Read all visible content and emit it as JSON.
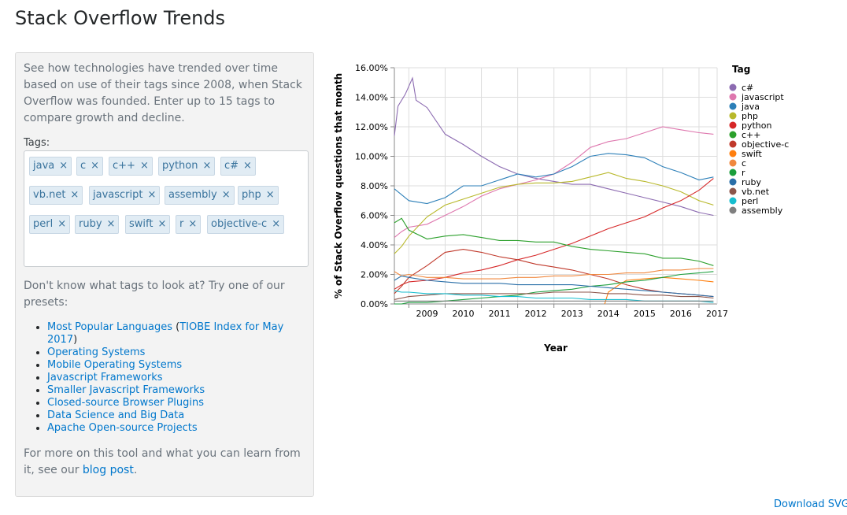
{
  "page": {
    "title": "Stack Overflow Trends"
  },
  "sidebar": {
    "intro": "See how technologies have trended over time based on use of their tags since 2008, when Stack Overflow was founded. Enter up to 15 tags to compare growth and decline.",
    "tags_label": "Tags:",
    "tags": [
      "java",
      "c",
      "c++",
      "python",
      "c#",
      "vb.net",
      "javascript",
      "assembly",
      "php",
      "perl",
      "ruby",
      "swift",
      "r",
      "objective-c"
    ],
    "remove_icon": "×",
    "presets_question": "Don't know what tags to look at? Try one of our presets:",
    "presets": {
      "item1_text": "Most Popular Languages",
      "item1_open": " (",
      "item1_link2": "TIOBE Index for May 2017",
      "item1_close": ")",
      "others": [
        "Operating Systems",
        "Mobile Operating Systems",
        "Javascript Frameworks",
        "Smaller Javascript Frameworks",
        "Closed-source Browser Plugins",
        "Data Science and Big Data",
        "Apache Open-source Projects"
      ]
    },
    "more_text": "For more on this tool and what you can learn from it, see our",
    "more_link": "blog post",
    "more_end": "."
  },
  "download_label": "Download SVG",
  "chart_data": {
    "type": "line",
    "xlabel": "Year",
    "ylabel": "% of Stack Overflow questions that month",
    "ylim": [
      0,
      16
    ],
    "yticks": [
      "0.00%",
      "2.00%",
      "4.00%",
      "6.00%",
      "8.00%",
      "10.00%",
      "12.00%",
      "14.00%",
      "16.00%"
    ],
    "xlim": [
      2008.6,
      2017.5
    ],
    "xticks": [
      "2009",
      "2010",
      "2011",
      "2012",
      "2013",
      "2014",
      "2015",
      "2016",
      "2017"
    ],
    "grid": true,
    "legend_title": "Tag",
    "legend_position": "right",
    "series": [
      {
        "name": "c#",
        "color": "#8c6bb1",
        "x": [
          2008.6,
          2008.7,
          2008.9,
          2009.1,
          2009.2,
          2009.5,
          2010.0,
          2010.5,
          2011.0,
          2011.5,
          2012.0,
          2012.5,
          2013.0,
          2013.5,
          2014.0,
          2014.5,
          2015.0,
          2015.5,
          2016.0,
          2016.5,
          2017.0,
          2017.4
        ],
        "y": [
          11.4,
          13.4,
          14.2,
          15.3,
          13.8,
          13.3,
          11.5,
          10.8,
          10.0,
          9.3,
          8.8,
          8.5,
          8.3,
          8.1,
          8.1,
          7.8,
          7.5,
          7.2,
          6.9,
          6.6,
          6.2,
          6.0
        ]
      },
      {
        "name": "javascript",
        "color": "#de77ae",
        "x": [
          2008.6,
          2008.8,
          2009.0,
          2009.5,
          2010.0,
          2010.5,
          2011.0,
          2011.5,
          2012.0,
          2012.5,
          2013.0,
          2013.5,
          2014.0,
          2014.5,
          2015.0,
          2015.5,
          2016.0,
          2016.5,
          2017.0,
          2017.4
        ],
        "y": [
          4.5,
          4.9,
          5.2,
          5.4,
          6.0,
          6.6,
          7.3,
          7.8,
          8.1,
          8.4,
          8.8,
          9.6,
          10.6,
          11.0,
          11.2,
          11.6,
          12.0,
          11.8,
          11.6,
          11.5
        ]
      },
      {
        "name": "java",
        "color": "#2c7fb8",
        "x": [
          2008.6,
          2008.8,
          2009.0,
          2009.5,
          2010.0,
          2010.5,
          2011.0,
          2011.5,
          2012.0,
          2012.5,
          2013.0,
          2013.5,
          2014.0,
          2014.5,
          2015.0,
          2015.5,
          2016.0,
          2016.5,
          2017.0,
          2017.4
        ],
        "y": [
          7.8,
          7.4,
          7.0,
          6.8,
          7.2,
          8.0,
          8.0,
          8.4,
          8.8,
          8.6,
          8.8,
          9.3,
          10.0,
          10.2,
          10.1,
          9.9,
          9.3,
          8.9,
          8.4,
          8.6
        ]
      },
      {
        "name": "php",
        "color": "#b8b82a",
        "x": [
          2008.6,
          2008.8,
          2009.0,
          2009.5,
          2010.0,
          2010.5,
          2011.0,
          2011.5,
          2012.0,
          2012.5,
          2013.0,
          2013.5,
          2014.0,
          2014.5,
          2015.0,
          2015.5,
          2016.0,
          2016.5,
          2017.0,
          2017.4
        ],
        "y": [
          3.4,
          3.9,
          4.6,
          5.9,
          6.7,
          7.1,
          7.5,
          7.9,
          8.1,
          8.2,
          8.2,
          8.3,
          8.6,
          8.9,
          8.5,
          8.3,
          8.0,
          7.6,
          7.0,
          6.7
        ]
      },
      {
        "name": "python",
        "color": "#d62728",
        "x": [
          2008.6,
          2008.8,
          2009.0,
          2009.5,
          2010.0,
          2010.5,
          2011.0,
          2011.5,
          2012.0,
          2012.5,
          2013.0,
          2013.5,
          2014.0,
          2014.5,
          2015.0,
          2015.5,
          2016.0,
          2016.5,
          2017.0,
          2017.4
        ],
        "y": [
          1.0,
          1.3,
          1.5,
          1.6,
          1.8,
          2.1,
          2.3,
          2.6,
          3.0,
          3.3,
          3.7,
          4.1,
          4.6,
          5.1,
          5.5,
          5.9,
          6.5,
          7.0,
          7.7,
          8.5
        ]
      },
      {
        "name": "c++",
        "color": "#2ca02c",
        "x": [
          2008.6,
          2008.8,
          2009.0,
          2009.5,
          2010.0,
          2010.5,
          2011.0,
          2011.5,
          2012.0,
          2012.5,
          2013.0,
          2013.5,
          2014.0,
          2014.5,
          2015.0,
          2015.5,
          2016.0,
          2016.5,
          2017.0,
          2017.4
        ],
        "y": [
          5.5,
          5.8,
          5.0,
          4.4,
          4.6,
          4.7,
          4.5,
          4.3,
          4.3,
          4.2,
          4.2,
          3.9,
          3.7,
          3.6,
          3.5,
          3.4,
          3.1,
          3.1,
          2.9,
          2.6
        ]
      },
      {
        "name": "objective-c",
        "color": "#c0392b",
        "x": [
          2008.6,
          2008.8,
          2009.0,
          2009.5,
          2010.0,
          2010.5,
          2011.0,
          2011.5,
          2012.0,
          2012.5,
          2013.0,
          2013.5,
          2014.0,
          2014.5,
          2015.0,
          2015.5,
          2016.0,
          2016.5,
          2017.0,
          2017.4
        ],
        "y": [
          0.7,
          1.2,
          1.8,
          2.6,
          3.5,
          3.7,
          3.5,
          3.2,
          3.0,
          2.7,
          2.5,
          2.3,
          2.0,
          1.7,
          1.3,
          1.0,
          0.8,
          0.7,
          0.6,
          0.5
        ]
      },
      {
        "name": "swift",
        "color": "#ff7f0e",
        "x": [
          2014.4,
          2014.5,
          2014.8,
          2015.0,
          2015.5,
          2016.0,
          2016.5,
          2017.0,
          2017.4
        ],
        "y": [
          0.0,
          0.8,
          1.3,
          1.6,
          1.7,
          1.8,
          1.7,
          1.6,
          1.5
        ]
      },
      {
        "name": "c",
        "color": "#f0883e",
        "x": [
          2008.6,
          2008.8,
          2009.0,
          2009.5,
          2010.0,
          2010.5,
          2011.0,
          2011.5,
          2012.0,
          2012.5,
          2013.0,
          2013.5,
          2014.0,
          2014.5,
          2015.0,
          2015.5,
          2016.0,
          2016.5,
          2017.0,
          2017.4
        ],
        "y": [
          2.2,
          1.9,
          2.0,
          1.8,
          1.8,
          1.7,
          1.7,
          1.7,
          1.8,
          1.8,
          1.9,
          1.9,
          2.0,
          2.0,
          2.1,
          2.1,
          2.3,
          2.3,
          2.4,
          2.4
        ]
      },
      {
        "name": "r",
        "color": "#1b9e3c",
        "x": [
          2008.6,
          2008.8,
          2009.0,
          2009.5,
          2010.0,
          2010.5,
          2011.0,
          2011.5,
          2012.0,
          2012.5,
          2013.0,
          2013.5,
          2014.0,
          2014.5,
          2015.0,
          2015.5,
          2016.0,
          2016.5,
          2017.0,
          2017.4
        ],
        "y": [
          0.0,
          0.0,
          0.1,
          0.1,
          0.2,
          0.3,
          0.4,
          0.5,
          0.6,
          0.8,
          0.9,
          1.0,
          1.2,
          1.3,
          1.5,
          1.6,
          1.8,
          2.0,
          2.1,
          2.2
        ]
      },
      {
        "name": "ruby",
        "color": "#2a6fa8",
        "x": [
          2008.6,
          2008.8,
          2009.0,
          2009.5,
          2010.0,
          2010.5,
          2011.0,
          2011.5,
          2012.0,
          2012.5,
          2013.0,
          2013.5,
          2014.0,
          2014.5,
          2015.0,
          2015.5,
          2016.0,
          2016.5,
          2017.0,
          2017.4
        ],
        "y": [
          1.6,
          1.9,
          1.8,
          1.6,
          1.5,
          1.4,
          1.4,
          1.4,
          1.3,
          1.3,
          1.3,
          1.3,
          1.2,
          1.1,
          1.0,
          0.9,
          0.8,
          0.7,
          0.6,
          0.5
        ]
      },
      {
        "name": "vb.net",
        "color": "#8c564b",
        "x": [
          2008.6,
          2008.8,
          2009.0,
          2009.5,
          2010.0,
          2010.5,
          2011.0,
          2011.5,
          2012.0,
          2012.5,
          2013.0,
          2013.5,
          2014.0,
          2014.5,
          2015.0,
          2015.5,
          2016.0,
          2016.5,
          2017.0,
          2017.4
        ],
        "y": [
          0.3,
          0.4,
          0.5,
          0.6,
          0.7,
          0.7,
          0.7,
          0.7,
          0.7,
          0.7,
          0.8,
          0.8,
          0.8,
          0.7,
          0.7,
          0.6,
          0.6,
          0.5,
          0.5,
          0.4
        ]
      },
      {
        "name": "perl",
        "color": "#17becf",
        "x": [
          2008.6,
          2008.8,
          2009.0,
          2009.5,
          2010.0,
          2010.5,
          2011.0,
          2011.5,
          2012.0,
          2012.5,
          2013.0,
          2013.5,
          2014.0,
          2014.5,
          2015.0,
          2015.5,
          2016.0,
          2016.5,
          2017.0,
          2017.4
        ],
        "y": [
          0.9,
          0.8,
          0.8,
          0.7,
          0.7,
          0.6,
          0.6,
          0.5,
          0.5,
          0.4,
          0.4,
          0.4,
          0.3,
          0.3,
          0.3,
          0.2,
          0.2,
          0.2,
          0.2,
          0.1
        ]
      },
      {
        "name": "assembly",
        "color": "#7f7f7f",
        "x": [
          2008.6,
          2008.8,
          2009.0,
          2009.5,
          2010.0,
          2010.5,
          2011.0,
          2011.5,
          2012.0,
          2012.5,
          2013.0,
          2013.5,
          2014.0,
          2014.5,
          2015.0,
          2015.5,
          2016.0,
          2016.5,
          2017.0,
          2017.4
        ],
        "y": [
          0.2,
          0.2,
          0.2,
          0.2,
          0.2,
          0.2,
          0.2,
          0.2,
          0.2,
          0.2,
          0.2,
          0.2,
          0.2,
          0.2,
          0.2,
          0.2,
          0.2,
          0.2,
          0.2,
          0.2
        ]
      }
    ]
  }
}
